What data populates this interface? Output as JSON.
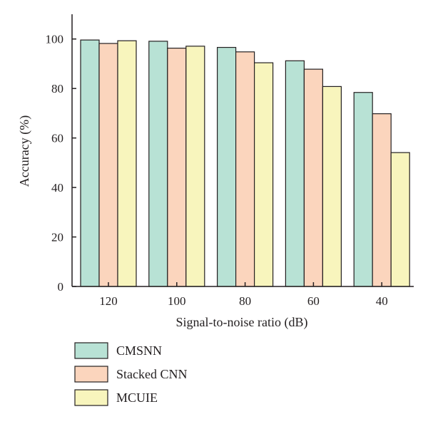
{
  "chart_data": {
    "type": "bar",
    "title": "",
    "xlabel": "Signal-to-noise ratio (dB)",
    "ylabel": "Accuracy (%)",
    "categories": [
      "120",
      "100",
      "80",
      "60",
      "40"
    ],
    "ylim": [
      0,
      110
    ],
    "yticks": [
      0,
      20,
      40,
      60,
      80,
      100
    ],
    "grid": false,
    "legend_position": "bottom-left, below plot",
    "series": [
      {
        "name": "CMSNN",
        "color": "#b8e2d5",
        "values": [
          99.6,
          99.1,
          96.6,
          91.2,
          78.4
        ]
      },
      {
        "name": "Stacked CNN",
        "color": "#fbd5bd",
        "values": [
          98.2,
          96.3,
          94.8,
          87.8,
          69.8
        ]
      },
      {
        "name": "MCUIE",
        "color": "#f8f5bd",
        "values": [
          99.3,
          97.1,
          90.4,
          80.8,
          54.1
        ]
      }
    ]
  }
}
